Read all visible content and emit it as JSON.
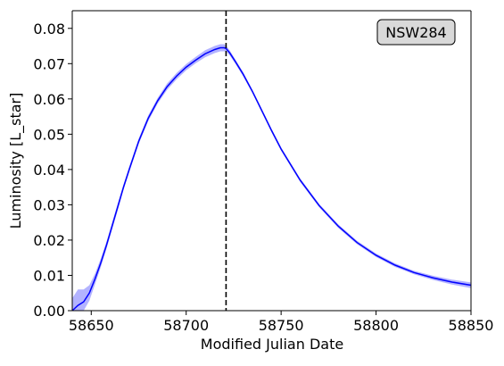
{
  "chart_data": {
    "type": "line",
    "xlabel": "Modified Julian Date",
    "ylabel": "Luminosity [L_star]",
    "xlim": [
      58640,
      58850
    ],
    "ylim": [
      0.0,
      0.085
    ],
    "x_ticks": [
      "58650",
      "58700",
      "58750",
      "58800",
      "58850"
    ],
    "x_tick_values": [
      58650,
      58700,
      58750,
      58800,
      58850
    ],
    "y_ticks": [
      "0.00",
      "0.01",
      "0.02",
      "0.03",
      "0.04",
      "0.05",
      "0.06",
      "0.07",
      "0.08"
    ],
    "y_tick_values": [
      0.0,
      0.01,
      0.02,
      0.03,
      0.04,
      0.05,
      0.06,
      0.07,
      0.08
    ],
    "grid": false,
    "annotation": "NSW284",
    "peak_marker_x": 58721,
    "colors": {
      "line": "#0000ff",
      "band": "#9999ff",
      "marker_line": "#000000",
      "badge_fill": "#d9d9d9"
    },
    "series": [
      {
        "x": [
          58640,
          58643,
          58646,
          58649,
          58652,
          58655,
          58658,
          58661,
          58664,
          58667,
          58670,
          58675,
          58680,
          58685,
          58690,
          58695,
          58700,
          58705,
          58710,
          58715,
          58718,
          58720,
          58721,
          58723,
          58726,
          58730,
          58735,
          58740,
          58745,
          58750,
          58760,
          58770,
          58780,
          58790,
          58800,
          58810,
          58820,
          58830,
          58840,
          58850
        ],
        "y": [
          0.0,
          0.0015,
          0.0025,
          0.005,
          0.009,
          0.0135,
          0.0185,
          0.024,
          0.0295,
          0.035,
          0.04,
          0.048,
          0.0545,
          0.0595,
          0.0635,
          0.0665,
          0.069,
          0.071,
          0.0728,
          0.074,
          0.0745,
          0.0745,
          0.0743,
          0.073,
          0.0705,
          0.067,
          0.062,
          0.0565,
          0.051,
          0.0458,
          0.037,
          0.0298,
          0.024,
          0.0193,
          0.0157,
          0.0129,
          0.0108,
          0.0093,
          0.0081,
          0.0072
        ],
        "err": [
          0.0035,
          0.0045,
          0.0035,
          0.0022,
          0.0015,
          0.0012,
          0.001,
          0.001,
          0.001,
          0.0008,
          0.0008,
          0.0008,
          0.0008,
          0.0008,
          0.0009,
          0.0009,
          0.0009,
          0.0009,
          0.001,
          0.001,
          0.001,
          0.001,
          0.0008,
          0.0007,
          0.0006,
          0.0006,
          0.0005,
          0.0005,
          0.0005,
          0.0005,
          0.0005,
          0.0005,
          0.0005,
          0.0005,
          0.0005,
          0.0005,
          0.0005,
          0.0006,
          0.0007,
          0.0008
        ]
      }
    ]
  }
}
